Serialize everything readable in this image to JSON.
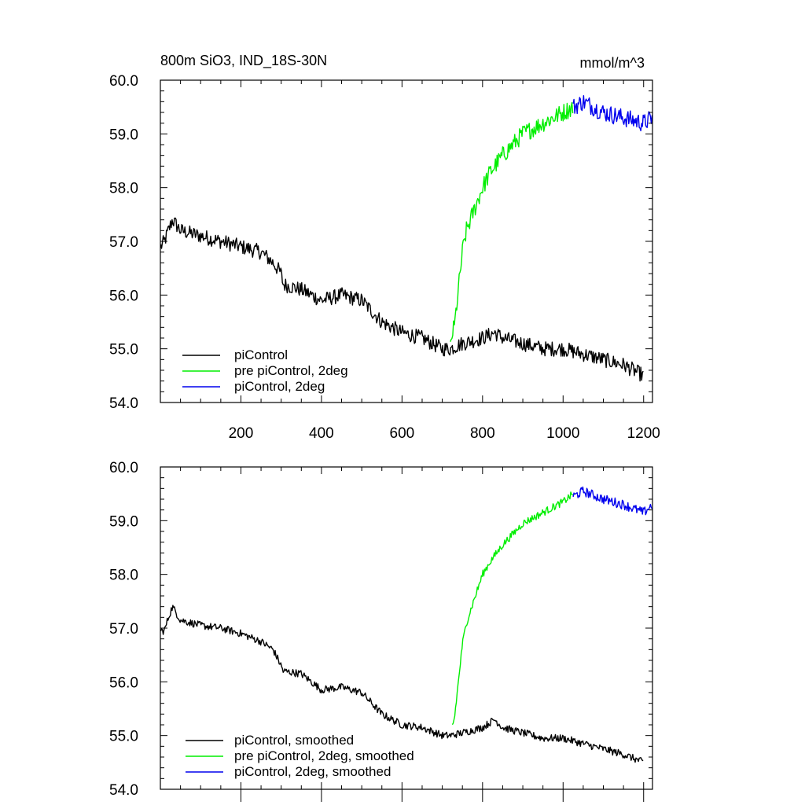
{
  "figure": {
    "title_left": "800m SiO3, IND_18S-30N",
    "title_right": "mmol/m^3"
  },
  "colors": {
    "black": "#000000",
    "green": "#00ee00",
    "blue": "#0000ee"
  },
  "chart_data": [
    {
      "type": "line",
      "title": "800m SiO3, IND_18S-30N",
      "units": "mmol/m^3",
      "xlim": [
        0,
        1222
      ],
      "ylim": [
        54.0,
        60.0
      ],
      "x_ticks": [
        200,
        400,
        600,
        800,
        1000,
        1200
      ],
      "x_tick_labels": [
        "200",
        "400",
        "600",
        "800",
        "1000",
        "1200"
      ],
      "y_ticks": [
        54.0,
        55.0,
        56.0,
        57.0,
        58.0,
        59.0,
        60.0
      ],
      "y_tick_labels": [
        "54.0",
        "55.0",
        "56.0",
        "57.0",
        "58.0",
        "59.0",
        "60.0"
      ],
      "legend_position": "bottom-left",
      "series": [
        {
          "name": "piControl",
          "color": "#000000",
          "noise": 0.14,
          "points": [
            [
              1,
              56.9
            ],
            [
              10,
              57.0
            ],
            [
              20,
              57.2
            ],
            [
              30,
              57.4
            ],
            [
              50,
              57.2
            ],
            [
              100,
              57.1
            ],
            [
              150,
              57.0
            ],
            [
              200,
              56.9
            ],
            [
              250,
              56.8
            ],
            [
              280,
              56.6
            ],
            [
              300,
              56.4
            ],
            [
              305,
              56.2
            ],
            [
              350,
              56.1
            ],
            [
              400,
              55.9
            ],
            [
              450,
              56.0
            ],
            [
              500,
              55.9
            ],
            [
              550,
              55.5
            ],
            [
              600,
              55.3
            ],
            [
              650,
              55.2
            ],
            [
              700,
              55.0
            ],
            [
              720,
              55.0
            ],
            [
              750,
              55.1
            ],
            [
              800,
              55.2
            ],
            [
              830,
              55.3
            ],
            [
              850,
              55.2
            ],
            [
              900,
              55.1
            ],
            [
              950,
              55.0
            ],
            [
              1000,
              55.0
            ],
            [
              1050,
              54.9
            ],
            [
              1100,
              54.8
            ],
            [
              1150,
              54.7
            ],
            [
              1200,
              54.5
            ]
          ]
        },
        {
          "name": "pre piControl, 2deg",
          "color": "#00ee00",
          "noise": 0.17,
          "points": [
            [
              720,
              55.0
            ],
            [
              725,
              55.3
            ],
            [
              730,
              55.4
            ],
            [
              740,
              56.1
            ],
            [
              750,
              56.8
            ],
            [
              760,
              57.2
            ],
            [
              780,
              57.6
            ],
            [
              800,
              58.0
            ],
            [
              820,
              58.3
            ],
            [
              850,
              58.6
            ],
            [
              900,
              59.0
            ],
            [
              950,
              59.2
            ],
            [
              1000,
              59.4
            ],
            [
              1025,
              59.5
            ]
          ]
        },
        {
          "name": "piControl, 2deg",
          "color": "#0000ee",
          "noise": 0.17,
          "points": [
            [
              1025,
              59.5
            ],
            [
              1050,
              59.6
            ],
            [
              1100,
              59.4
            ],
            [
              1150,
              59.3
            ],
            [
              1200,
              59.2
            ],
            [
              1222,
              59.3
            ]
          ]
        }
      ]
    },
    {
      "type": "line",
      "xlim": [
        0,
        1222
      ],
      "ylim": [
        54.0,
        60.0
      ],
      "x_ticks": [
        200,
        400,
        600,
        800,
        1000,
        1200
      ],
      "y_ticks": [
        54.0,
        55.0,
        56.0,
        57.0,
        58.0,
        59.0,
        60.0
      ],
      "y_tick_labels": [
        "54.0",
        "55.0",
        "56.0",
        "57.0",
        "58.0",
        "59.0",
        "60.0"
      ],
      "legend_position": "bottom-left",
      "series": [
        {
          "name": "piControl, smoothed",
          "color": "#000000",
          "noise": 0.07,
          "points": [
            [
              1,
              56.95
            ],
            [
              10,
              56.95
            ],
            [
              20,
              57.2
            ],
            [
              30,
              57.4
            ],
            [
              50,
              57.15
            ],
            [
              100,
              57.05
            ],
            [
              150,
              57.0
            ],
            [
              200,
              56.9
            ],
            [
              250,
              56.75
            ],
            [
              280,
              56.6
            ],
            [
              300,
              56.3
            ],
            [
              305,
              56.2
            ],
            [
              350,
              56.15
            ],
            [
              400,
              55.85
            ],
            [
              450,
              55.9
            ],
            [
              500,
              55.8
            ],
            [
              550,
              55.4
            ],
            [
              600,
              55.2
            ],
            [
              650,
              55.15
            ],
            [
              700,
              55.0
            ],
            [
              720,
              55.0
            ],
            [
              750,
              55.05
            ],
            [
              800,
              55.15
            ],
            [
              830,
              55.3
            ],
            [
              850,
              55.15
            ],
            [
              900,
              55.05
            ],
            [
              950,
              54.95
            ],
            [
              1000,
              54.95
            ],
            [
              1050,
              54.85
            ],
            [
              1100,
              54.75
            ],
            [
              1150,
              54.65
            ],
            [
              1200,
              54.5
            ]
          ]
        },
        {
          "name": "pre piControl, 2deg, smoothed",
          "color": "#00ee00",
          "noise": 0.07,
          "points": [
            [
              725,
              55.2
            ],
            [
              730,
              55.3
            ],
            [
              740,
              56.0
            ],
            [
              750,
              56.7
            ],
            [
              760,
              57.1
            ],
            [
              780,
              57.55
            ],
            [
              800,
              58.0
            ],
            [
              820,
              58.25
            ],
            [
              850,
              58.55
            ],
            [
              900,
              58.95
            ],
            [
              950,
              59.15
            ],
            [
              1000,
              59.35
            ],
            [
              1025,
              59.5
            ]
          ]
        },
        {
          "name": "piControl, 2deg, smoothed",
          "color": "#0000ee",
          "noise": 0.09,
          "points": [
            [
              1025,
              59.45
            ],
            [
              1050,
              59.55
            ],
            [
              1100,
              59.4
            ],
            [
              1150,
              59.3
            ],
            [
              1200,
              59.15
            ],
            [
              1222,
              59.3
            ]
          ]
        }
      ]
    }
  ]
}
